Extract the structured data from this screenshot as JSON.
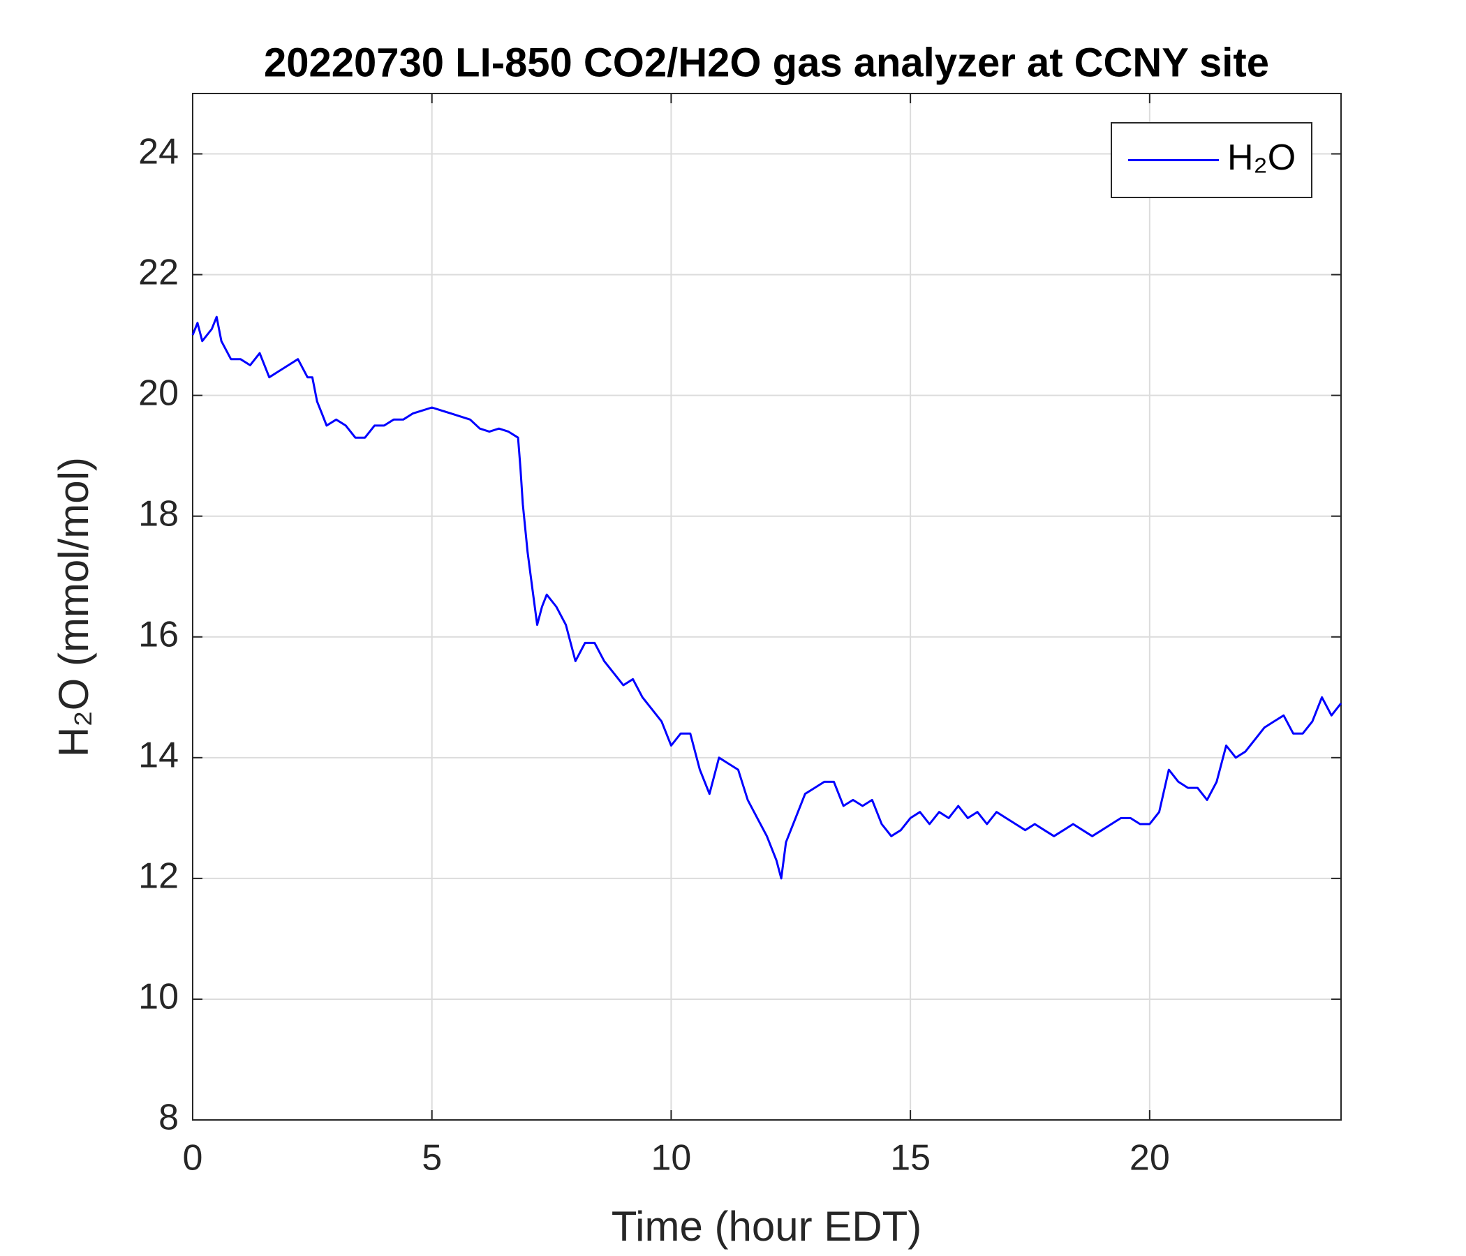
{
  "chart_data": {
    "type": "line",
    "title": "20220730 LI-850 CO2/H2O gas analyzer at CCNY site",
    "xlabel": "Time (hour EDT)",
    "ylabel": "H₂O (mmol/mol)",
    "x": [
      0,
      0.1,
      0.2,
      0.4,
      0.5,
      0.6,
      0.8,
      1.0,
      1.2,
      1.4,
      1.6,
      1.8,
      2.0,
      2.2,
      2.4,
      2.5,
      2.6,
      2.7,
      2.8,
      3.0,
      3.2,
      3.4,
      3.6,
      3.8,
      4.0,
      4.2,
      4.4,
      4.6,
      4.8,
      5.0,
      5.2,
      5.4,
      5.6,
      5.8,
      6.0,
      6.2,
      6.4,
      6.6,
      6.8,
      6.85,
      6.9,
      7.0,
      7.1,
      7.2,
      7.3,
      7.4,
      7.6,
      7.8,
      8.0,
      8.2,
      8.4,
      8.6,
      8.8,
      9.0,
      9.2,
      9.4,
      9.6,
      9.8,
      10.0,
      10.2,
      10.4,
      10.6,
      10.8,
      11.0,
      11.2,
      11.4,
      11.6,
      11.8,
      12.0,
      12.2,
      12.3,
      12.4,
      12.6,
      12.8,
      13.0,
      13.2,
      13.4,
      13.6,
      13.8,
      14.0,
      14.2,
      14.4,
      14.6,
      14.8,
      15.0,
      15.2,
      15.4,
      15.6,
      15.8,
      16.0,
      16.2,
      16.4,
      16.6,
      16.8,
      17.0,
      17.2,
      17.4,
      17.6,
      17.8,
      18.0,
      18.2,
      18.4,
      18.6,
      18.8,
      19.0,
      19.2,
      19.4,
      19.6,
      19.8,
      20.0,
      20.2,
      20.4,
      20.6,
      20.8,
      21.0,
      21.2,
      21.4,
      21.6,
      21.8,
      22.0,
      22.2,
      22.4,
      22.6,
      22.8,
      23.0,
      23.2,
      23.4,
      23.6,
      23.8,
      24.0
    ],
    "series": [
      {
        "name": "H₂O",
        "color": "#0000ff",
        "values": [
          21.0,
          21.2,
          20.9,
          21.1,
          21.3,
          20.9,
          20.6,
          20.6,
          20.5,
          20.7,
          20.3,
          20.4,
          20.5,
          20.6,
          20.3,
          20.3,
          19.9,
          19.7,
          19.5,
          19.6,
          19.5,
          19.3,
          19.3,
          19.5,
          19.5,
          19.6,
          19.6,
          19.7,
          19.75,
          19.8,
          19.75,
          19.7,
          19.65,
          19.6,
          19.45,
          19.4,
          19.45,
          19.4,
          19.3,
          18.8,
          18.2,
          17.4,
          16.8,
          16.2,
          16.5,
          16.7,
          16.5,
          16.2,
          15.6,
          15.9,
          15.9,
          15.6,
          15.4,
          15.2,
          15.3,
          15.0,
          14.8,
          14.6,
          14.2,
          14.4,
          14.4,
          13.8,
          13.4,
          14.0,
          13.9,
          13.8,
          13.3,
          13.0,
          12.7,
          12.3,
          12.0,
          12.6,
          13.0,
          13.4,
          13.5,
          13.6,
          13.6,
          13.2,
          13.3,
          13.2,
          13.3,
          12.9,
          12.7,
          12.8,
          13.0,
          13.1,
          12.9,
          13.1,
          13.0,
          13.2,
          13.0,
          13.1,
          12.9,
          13.1,
          13.0,
          12.9,
          12.8,
          12.9,
          12.8,
          12.7,
          12.8,
          12.9,
          12.8,
          12.7,
          12.8,
          12.9,
          13.0,
          13.0,
          12.9,
          12.9,
          13.1,
          13.8,
          13.6,
          13.5,
          13.5,
          13.3,
          13.6,
          14.2,
          14.0,
          14.1,
          14.3,
          14.5,
          14.6,
          14.7,
          14.4,
          14.4,
          14.6,
          15.0,
          14.7,
          14.9
        ]
      }
    ],
    "xlim": [
      0,
      24
    ],
    "xticks": [
      0,
      5,
      10,
      15,
      20
    ],
    "ylim": [
      8,
      25
    ],
    "yticks": [
      8,
      10,
      12,
      14,
      16,
      18,
      20,
      22,
      24
    ],
    "grid": true,
    "legend": "upper right"
  }
}
